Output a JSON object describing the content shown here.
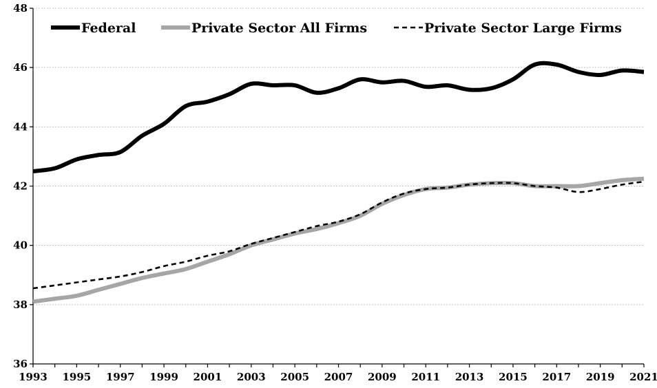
{
  "chart_data": {
    "type": "line",
    "title": "",
    "xlabel": "",
    "ylabel": "",
    "x": [
      1993,
      1994,
      1995,
      1996,
      1997,
      1998,
      1999,
      2000,
      2001,
      2002,
      2003,
      2004,
      2005,
      2006,
      2007,
      2008,
      2009,
      2010,
      2011,
      2012,
      2013,
      2014,
      2015,
      2016,
      2017,
      2018,
      2019,
      2020,
      2021
    ],
    "xlim": [
      1993,
      2021
    ],
    "ylim": [
      36,
      48
    ],
    "y_ticks": [
      "36",
      "38",
      "40",
      "42",
      "44",
      "46",
      "48"
    ],
    "x_ticks": [
      "1993",
      "1995",
      "1997",
      "1999",
      "2001",
      "2003",
      "2005",
      "2007",
      "2009",
      "2011",
      "2013",
      "2015",
      "2017",
      "2019",
      "2021"
    ],
    "grid": "horizontal",
    "legend_position": "top",
    "series": [
      {
        "name": "Federal",
        "color": "#000000",
        "style": "solid-thick",
        "values": [
          42.5,
          42.6,
          42.9,
          43.05,
          43.15,
          43.7,
          44.1,
          44.7,
          44.85,
          45.1,
          45.45,
          45.4,
          45.4,
          45.15,
          45.3,
          45.6,
          45.5,
          45.55,
          45.35,
          45.4,
          45.25,
          45.3,
          45.6,
          46.1,
          46.1,
          45.85,
          45.75,
          45.9,
          45.85
        ]
      },
      {
        "name": "Private Sector All Firms",
        "color": "#a6a6a6",
        "style": "solid-thick",
        "values": [
          38.1,
          38.2,
          38.3,
          38.5,
          38.7,
          38.9,
          39.05,
          39.2,
          39.45,
          39.7,
          40.0,
          40.2,
          40.4,
          40.55,
          40.75,
          41.0,
          41.4,
          41.7,
          41.9,
          41.95,
          42.05,
          42.1,
          42.1,
          42.0,
          42.0,
          42.0,
          42.1,
          42.2,
          42.25
        ]
      },
      {
        "name": "Private Sector Large Firms",
        "color": "#000000",
        "style": "dashed",
        "values": [
          38.55,
          38.65,
          38.75,
          38.85,
          38.95,
          39.1,
          39.3,
          39.45,
          39.65,
          39.8,
          40.05,
          40.25,
          40.45,
          40.65,
          40.8,
          41.05,
          41.45,
          41.75,
          41.9,
          41.95,
          42.05,
          42.1,
          42.1,
          42.0,
          41.95,
          41.8,
          41.9,
          42.05,
          42.15
        ]
      }
    ]
  }
}
